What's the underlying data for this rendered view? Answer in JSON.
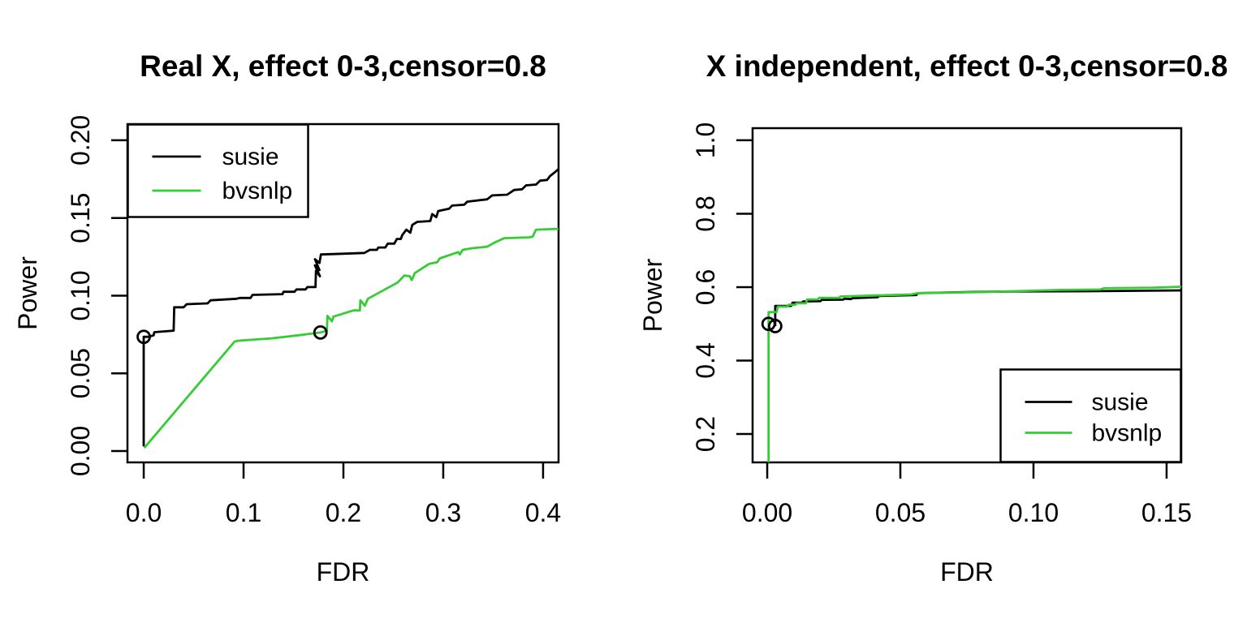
{
  "figure": {
    "background": "#ffffff",
    "series_colors": {
      "susie": "#000000",
      "bvsnlp": "#35cc35"
    },
    "marker_stroke": "#000000"
  },
  "chart_data": [
    {
      "type": "line",
      "title": "Real X, effect 0-3,censor=0.8",
      "xlabel": "FDR",
      "ylabel": "Power",
      "xlim": [
        -0.0163,
        0.4155
      ],
      "ylim": [
        -0.0073,
        0.2104
      ],
      "grid": false,
      "x_ticks": [
        0.0,
        0.1,
        0.2,
        0.3,
        0.4
      ],
      "x_tick_labels": [
        "0.0",
        "0.1",
        "0.2",
        "0.3",
        "0.4"
      ],
      "y_ticks": [
        0.0,
        0.05,
        0.1,
        0.15,
        0.2
      ],
      "y_tick_labels": [
        "0.00",
        "0.05",
        "0.10",
        "0.15",
        "0.20"
      ],
      "legend": {
        "position": "topleft",
        "items": [
          {
            "label": "susie",
            "color": "#000000"
          },
          {
            "label": "bvsnlp",
            "color": "#35cc35"
          }
        ]
      },
      "series": [
        {
          "name": "susie",
          "color": "#000000",
          "markers": [
            [
              0.0,
              0.0735
            ]
          ],
          "points": [
            [
              0.0,
              0.003
            ],
            [
              0.0,
              0.0735
            ],
            [
              0.005,
              0.0735
            ],
            [
              0.01,
              0.0745
            ],
            [
              0.0105,
              0.0765
            ],
            [
              0.03,
              0.0775
            ],
            [
              0.0305,
              0.0925
            ],
            [
              0.04,
              0.0925
            ],
            [
              0.043,
              0.0945
            ],
            [
              0.064,
              0.095
            ],
            [
              0.067,
              0.097
            ],
            [
              0.093,
              0.098
            ],
            [
              0.096,
              0.0985
            ],
            [
              0.107,
              0.0985
            ],
            [
              0.109,
              0.1005
            ],
            [
              0.139,
              0.101
            ],
            [
              0.14,
              0.1025
            ],
            [
              0.151,
              0.1025
            ],
            [
              0.153,
              0.104
            ],
            [
              0.162,
              0.104
            ],
            [
              0.164,
              0.1055
            ],
            [
              0.172,
              0.1055
            ],
            [
              0.1725,
              0.116
            ],
            [
              0.1765,
              0.1125
            ],
            [
              0.1715,
              0.1195
            ],
            [
              0.176,
              0.1165
            ],
            [
              0.1715,
              0.1235
            ],
            [
              0.176,
              0.121
            ],
            [
              0.1775,
              0.1265
            ],
            [
              0.199,
              0.127
            ],
            [
              0.221,
              0.1275
            ],
            [
              0.2265,
              0.1295
            ],
            [
              0.2335,
              0.1295
            ],
            [
              0.235,
              0.131
            ],
            [
              0.242,
              0.131
            ],
            [
              0.2445,
              0.1335
            ],
            [
              0.251,
              0.1335
            ],
            [
              0.2535,
              0.1365
            ],
            [
              0.2575,
              0.1365
            ],
            [
              0.259,
              0.139
            ],
            [
              0.263,
              0.1425
            ],
            [
              0.267,
              0.1405
            ],
            [
              0.269,
              0.1455
            ],
            [
              0.274,
              0.1475
            ],
            [
              0.287,
              0.148
            ],
            [
              0.289,
              0.1525
            ],
            [
              0.293,
              0.1505
            ],
            [
              0.295,
              0.1545
            ],
            [
              0.306,
              0.156
            ],
            [
              0.309,
              0.158
            ],
            [
              0.321,
              0.1585
            ],
            [
              0.324,
              0.1605
            ],
            [
              0.344,
              0.162
            ],
            [
              0.349,
              0.1645
            ],
            [
              0.364,
              0.165
            ],
            [
              0.371,
              0.168
            ],
            [
              0.379,
              0.1685
            ],
            [
              0.383,
              0.171
            ],
            [
              0.393,
              0.1715
            ],
            [
              0.397,
              0.174
            ],
            [
              0.404,
              0.1745
            ],
            [
              0.407,
              0.177
            ],
            [
              0.411,
              0.179
            ],
            [
              0.4155,
              0.1815
            ]
          ]
        },
        {
          "name": "bvsnlp",
          "color": "#35cc35",
          "markers": [
            [
              0.177,
              0.0763
            ]
          ],
          "points": [
            [
              0.0005,
              0.002
            ],
            [
              0.091,
              0.0705
            ],
            [
              0.095,
              0.071
            ],
            [
              0.128,
              0.0725
            ],
            [
              0.155,
              0.0745
            ],
            [
              0.177,
              0.0763
            ],
            [
              0.1835,
              0.0775
            ],
            [
              0.184,
              0.087
            ],
            [
              0.1885,
              0.0835
            ],
            [
              0.19,
              0.0865
            ],
            [
              0.21,
              0.0905
            ],
            [
              0.2165,
              0.0905
            ],
            [
              0.217,
              0.097
            ],
            [
              0.2215,
              0.0935
            ],
            [
              0.2245,
              0.098
            ],
            [
              0.2545,
              0.1085
            ],
            [
              0.261,
              0.113
            ],
            [
              0.2665,
              0.1125
            ],
            [
              0.2685,
              0.11
            ],
            [
              0.2715,
              0.1145
            ],
            [
              0.286,
              0.1205
            ],
            [
              0.294,
              0.1215
            ],
            [
              0.2965,
              0.124
            ],
            [
              0.315,
              0.128
            ],
            [
              0.3165,
              0.1265
            ],
            [
              0.3195,
              0.1295
            ],
            [
              0.329,
              0.1305
            ],
            [
              0.344,
              0.1315
            ],
            [
              0.351,
              0.134
            ],
            [
              0.361,
              0.137
            ],
            [
              0.386,
              0.1375
            ],
            [
              0.3895,
              0.138
            ],
            [
              0.393,
              0.1425
            ],
            [
              0.4155,
              0.143
            ]
          ]
        }
      ]
    },
    {
      "type": "line",
      "title": "X independent, effect 0-3,censor=0.8",
      "xlabel": "FDR",
      "ylabel": "Power",
      "xlim": [
        -0.0055,
        0.1555
      ],
      "ylim": [
        0.1227,
        1.033
      ],
      "grid": false,
      "x_ticks": [
        0.0,
        0.05,
        0.1,
        0.15
      ],
      "x_tick_labels": [
        "0.00",
        "0.05",
        "0.10",
        "0.15"
      ],
      "y_ticks": [
        0.2,
        0.4,
        0.6,
        0.8,
        1.0
      ],
      "y_tick_labels": [
        "0.2",
        "0.4",
        "0.6",
        "0.8",
        "1.0"
      ],
      "legend": {
        "position": "bottomright",
        "items": [
          {
            "label": "susie",
            "color": "#000000"
          },
          {
            "label": "bvsnlp",
            "color": "#35cc35"
          }
        ]
      },
      "series": [
        {
          "name": "susie",
          "color": "#000000",
          "markers": [
            [
              0.003,
              0.494
            ]
          ],
          "points": [
            [
              0.003,
              0.494
            ],
            [
              0.003,
              0.549
            ],
            [
              0.009,
              0.549
            ],
            [
              0.0095,
              0.5575
            ],
            [
              0.013,
              0.5575
            ],
            [
              0.0135,
              0.561
            ],
            [
              0.02,
              0.562
            ],
            [
              0.0205,
              0.5655
            ],
            [
              0.0285,
              0.566
            ],
            [
              0.029,
              0.5685
            ],
            [
              0.0315,
              0.5675
            ],
            [
              0.032,
              0.57
            ],
            [
              0.0415,
              0.5725
            ],
            [
              0.042,
              0.576
            ],
            [
              0.056,
              0.5785
            ],
            [
              0.0565,
              0.5835
            ],
            [
              0.062,
              0.5845
            ],
            [
              0.078,
              0.587
            ],
            [
              0.095,
              0.5885
            ],
            [
              0.12,
              0.589
            ],
            [
              0.1555,
              0.591
            ]
          ]
        },
        {
          "name": "bvsnlp",
          "color": "#35cc35",
          "markers": [
            [
              0.0005,
              0.5
            ]
          ],
          "points": [
            [
              0.0005,
              0.123
            ],
            [
              0.0005,
              0.532
            ],
            [
              0.0035,
              0.532
            ],
            [
              0.004,
              0.547
            ],
            [
              0.0075,
              0.547
            ],
            [
              0.008,
              0.552
            ],
            [
              0.0105,
              0.552
            ],
            [
              0.011,
              0.556
            ],
            [
              0.0145,
              0.556
            ],
            [
              0.015,
              0.5665
            ],
            [
              0.019,
              0.5665
            ],
            [
              0.0195,
              0.571
            ],
            [
              0.027,
              0.571
            ],
            [
              0.0275,
              0.5745
            ],
            [
              0.0415,
              0.5775
            ],
            [
              0.054,
              0.58
            ],
            [
              0.0565,
              0.5835
            ],
            [
              0.08,
              0.5865
            ],
            [
              0.11,
              0.5925
            ],
            [
              0.125,
              0.5935
            ],
            [
              0.1265,
              0.597
            ],
            [
              0.145,
              0.5985
            ],
            [
              0.1555,
              0.601
            ]
          ]
        }
      ]
    }
  ]
}
